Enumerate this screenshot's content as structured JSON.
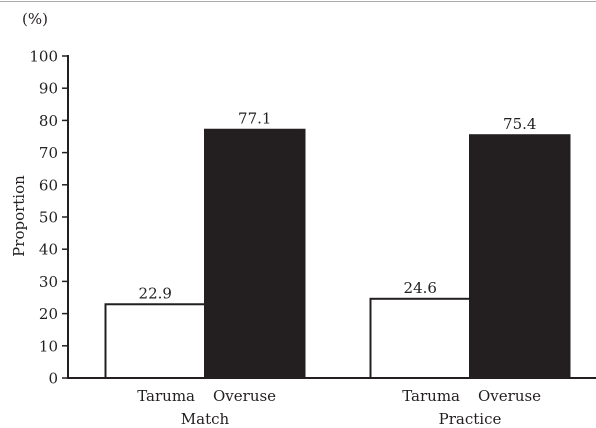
{
  "chart_data": {
    "type": "bar",
    "unit_label": "(%)",
    "ylabel": "Proportion",
    "ylim": [
      0,
      100
    ],
    "yticks": [
      0,
      10,
      20,
      30,
      40,
      50,
      60,
      70,
      80,
      90,
      100
    ],
    "categories": [
      "Match",
      "Practice"
    ],
    "series": [
      {
        "name": "Taruma",
        "values": [
          22.9,
          24.6
        ],
        "fill": "#ffffff",
        "edge": "#231f20"
      },
      {
        "name": "Overuse",
        "values": [
          77.1,
          75.4
        ],
        "fill": "#231f20",
        "edge": "#231f20"
      }
    ],
    "grid": false
  }
}
